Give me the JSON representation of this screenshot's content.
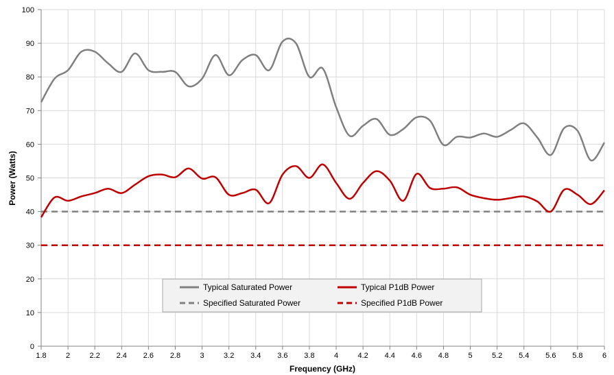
{
  "chart_data": {
    "type": "line",
    "title": "",
    "xlabel": "Frequency (GHz)",
    "ylabel": "Power (Watts)",
    "xlim": [
      1.8,
      6.0
    ],
    "ylim": [
      0,
      100
    ],
    "x_ticks": [
      "1.8",
      "2",
      "2.2",
      "2.4",
      "2.6",
      "2.8",
      "3",
      "3.2",
      "3.4",
      "3.6",
      "3.8",
      "4",
      "4.2",
      "4.4",
      "4.6",
      "4.8",
      "5",
      "5.2",
      "5.4",
      "5.6",
      "5.8",
      "6"
    ],
    "y_ticks": [
      "0",
      "10",
      "20",
      "30",
      "40",
      "50",
      "60",
      "70",
      "80",
      "90",
      "100"
    ],
    "grid": "vertical-and-horizontal",
    "legend_position": "bottom-center",
    "series": [
      {
        "name": "Typical Saturated Power",
        "color": "#808080",
        "dash": "solid",
        "points": [
          [
            1.8,
            72.5
          ],
          [
            1.9,
            79.5
          ],
          [
            2.0,
            82
          ],
          [
            2.1,
            87.5
          ],
          [
            2.2,
            87.5
          ],
          [
            2.3,
            84
          ],
          [
            2.4,
            81.5
          ],
          [
            2.5,
            87
          ],
          [
            2.6,
            82
          ],
          [
            2.7,
            81.5
          ],
          [
            2.8,
            81.5
          ],
          [
            2.9,
            77.2
          ],
          [
            3.0,
            79.5
          ],
          [
            3.1,
            86.5
          ],
          [
            3.2,
            80.5
          ],
          [
            3.3,
            85
          ],
          [
            3.4,
            86.5
          ],
          [
            3.5,
            82
          ],
          [
            3.6,
            90.5
          ],
          [
            3.7,
            90
          ],
          [
            3.8,
            80
          ],
          [
            3.9,
            82.5
          ],
          [
            4.0,
            71
          ],
          [
            4.1,
            62.5
          ],
          [
            4.2,
            65.5
          ],
          [
            4.3,
            67.5
          ],
          [
            4.4,
            62.8
          ],
          [
            4.5,
            64.5
          ],
          [
            4.6,
            68
          ],
          [
            4.7,
            67
          ],
          [
            4.8,
            59.8
          ],
          [
            4.9,
            62.2
          ],
          [
            5.0,
            62
          ],
          [
            5.1,
            63.2
          ],
          [
            5.2,
            62.2
          ],
          [
            5.3,
            64.2
          ],
          [
            5.4,
            66.2
          ],
          [
            5.5,
            62
          ],
          [
            5.6,
            56.8
          ],
          [
            5.7,
            64.8
          ],
          [
            5.8,
            64
          ],
          [
            5.9,
            55.2
          ],
          [
            6.0,
            60.5
          ]
        ]
      },
      {
        "name": "Typical P1dB Power",
        "color": "#c00000",
        "dash": "solid",
        "points": [
          [
            1.8,
            38.3
          ],
          [
            1.9,
            44.2
          ],
          [
            2.0,
            43.2
          ],
          [
            2.1,
            44.5
          ],
          [
            2.2,
            45.5
          ],
          [
            2.3,
            46.8
          ],
          [
            2.4,
            45.5
          ],
          [
            2.5,
            48
          ],
          [
            2.6,
            50.5
          ],
          [
            2.7,
            51
          ],
          [
            2.8,
            50.2
          ],
          [
            2.9,
            52.8
          ],
          [
            3.0,
            49.8
          ],
          [
            3.1,
            50.2
          ],
          [
            3.2,
            45
          ],
          [
            3.3,
            45.5
          ],
          [
            3.4,
            46.5
          ],
          [
            3.5,
            42.5
          ],
          [
            3.6,
            51
          ],
          [
            3.7,
            53.5
          ],
          [
            3.8,
            50
          ],
          [
            3.9,
            54
          ],
          [
            4.0,
            48.5
          ],
          [
            4.1,
            43.8
          ],
          [
            4.2,
            48.5
          ],
          [
            4.3,
            52
          ],
          [
            4.4,
            49.2
          ],
          [
            4.5,
            43.2
          ],
          [
            4.6,
            51.2
          ],
          [
            4.7,
            47
          ],
          [
            4.8,
            46.8
          ],
          [
            4.9,
            47.2
          ],
          [
            5.0,
            45
          ],
          [
            5.1,
            44
          ],
          [
            5.2,
            43.5
          ],
          [
            5.3,
            44
          ],
          [
            5.4,
            44.5
          ],
          [
            5.5,
            43
          ],
          [
            5.6,
            40
          ],
          [
            5.7,
            46.5
          ],
          [
            5.8,
            45
          ],
          [
            5.9,
            42.2
          ],
          [
            6.0,
            46.3
          ]
        ]
      },
      {
        "name": "Specified Saturated Power",
        "color": "#808080",
        "dash": "dashed",
        "points": [
          [
            1.8,
            40
          ],
          [
            6.0,
            40
          ]
        ]
      },
      {
        "name": "Specified P1dB Power",
        "color": "#c00000",
        "dash": "dashed",
        "points": [
          [
            1.8,
            30
          ],
          [
            6.0,
            30
          ]
        ]
      }
    ]
  }
}
